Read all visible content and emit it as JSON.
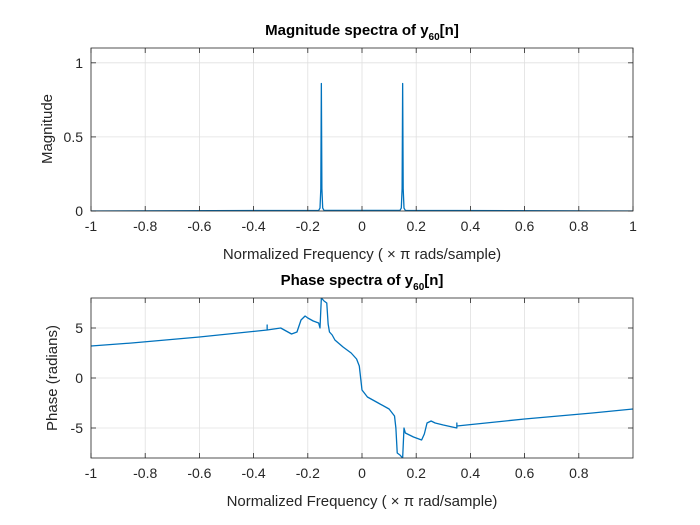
{
  "chart_data": [
    {
      "type": "line",
      "title": "Magnitude spectra of y",
      "title_subscript": "60",
      "title_suffix": "[n]",
      "xlabel": "Normalized Frequency ( × π rads/sample)",
      "ylabel": "Magnitude",
      "xlim": [
        -1,
        1
      ],
      "ylim": [
        0,
        1.1
      ],
      "xticks": [
        -1,
        -0.8,
        -0.6,
        -0.4,
        -0.2,
        0,
        0.2,
        0.4,
        0.6,
        0.8,
        1
      ],
      "xtick_labels": [
        "-1",
        "-0.8",
        "-0.6",
        "-0.4",
        "-0.2",
        "0",
        "0.2",
        "0.4",
        "0.6",
        "0.8",
        "1"
      ],
      "yticks": [
        0,
        0.5,
        1
      ],
      "ytick_labels": [
        "0",
        "0.5",
        "1"
      ],
      "grid": true,
      "color": "#0072BD",
      "series": [
        {
          "x": [
            -1,
            -0.16,
            -0.155,
            -0.152,
            -0.15,
            -0.148,
            -0.145,
            -0.14,
            0.14,
            0.145,
            0.148,
            0.15,
            0.152,
            0.155,
            0.16,
            1
          ],
          "y": [
            0,
            0.004,
            0.02,
            0.15,
            0.86,
            0.15,
            0.02,
            0.004,
            0.004,
            0.02,
            0.15,
            0.86,
            0.15,
            0.02,
            0.004,
            0
          ]
        }
      ]
    },
    {
      "type": "line",
      "title": "Phase spectra of y",
      "title_subscript": "60",
      "title_suffix": "[n]",
      "xlabel": "Normalized Frequency ( × π rad/sample)",
      "ylabel": "Phase (radians)",
      "xlim": [
        -1,
        1
      ],
      "ylim": [
        -8,
        8
      ],
      "xticks": [
        -1,
        -0.8,
        -0.6,
        -0.4,
        -0.2,
        0,
        0.2,
        0.4,
        0.6,
        0.8
      ],
      "xtick_labels": [
        "-1",
        "-0.8",
        "-0.6",
        "-0.4",
        "-0.2",
        "0",
        "0.2",
        "0.4",
        "0.6",
        "0.8"
      ],
      "yticks": [
        -5,
        0,
        5
      ],
      "ytick_labels": [
        "-5",
        "0",
        "5"
      ],
      "grid": true,
      "color": "#0072BD",
      "series": [
        {
          "x": [
            -1,
            -0.85,
            -0.6,
            -0.35,
            -0.35,
            -0.35,
            -0.3,
            -0.28,
            -0.26,
            -0.24,
            -0.225,
            -0.21,
            -0.2,
            -0.18,
            -0.16,
            -0.155,
            -0.15,
            -0.14,
            -0.13,
            -0.125,
            -0.12,
            -0.11,
            -0.1,
            -0.07,
            -0.04,
            -0.02,
            -0.01,
            0,
            0.02,
            0.06,
            0.1,
            0.12,
            0.125,
            0.13,
            0.14,
            0.15,
            0.155,
            0.16,
            0.19,
            0.22,
            0.23,
            0.24,
            0.255,
            0.27,
            0.3,
            0.35,
            0.35,
            0.35,
            0.6,
            0.85,
            1
          ],
          "y": [
            3.2,
            3.5,
            4.1,
            4.8,
            5.3,
            4.8,
            5.0,
            4.7,
            4.4,
            4.6,
            5.8,
            6.2,
            6.0,
            5.7,
            5.5,
            5.0,
            8.0,
            7.7,
            7.5,
            5.4,
            4.6,
            4.3,
            3.8,
            3.1,
            2.5,
            1.9,
            1.2,
            -1.2,
            -1.9,
            -2.5,
            -3.1,
            -3.8,
            -5.0,
            -7.5,
            -7.7,
            -8.0,
            -5.0,
            -5.5,
            -5.9,
            -6.2,
            -5.6,
            -4.5,
            -4.3,
            -4.5,
            -4.7,
            -5.0,
            -4.5,
            -4.8,
            -4.1,
            -3.5,
            -3.1
          ]
        }
      ]
    }
  ]
}
